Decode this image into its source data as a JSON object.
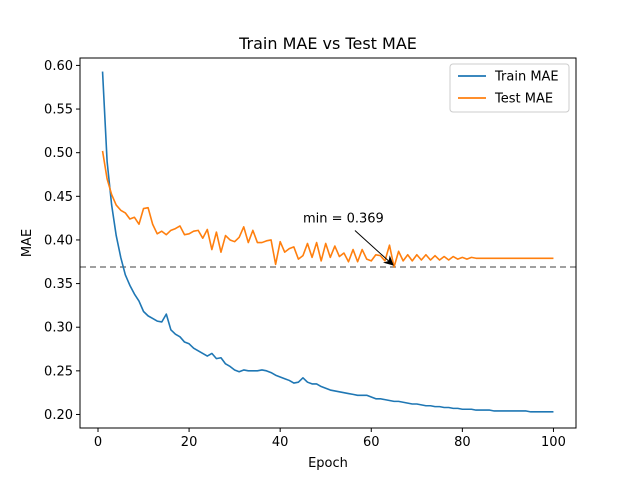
{
  "chart_data": {
    "type": "line",
    "title": "Train MAE vs Test MAE",
    "xlabel": "Epoch",
    "ylabel": "MAE",
    "xlim": [
      -3.95,
      104.95
    ],
    "ylim": [
      0.1845,
      0.6085
    ],
    "xticks": [
      0,
      20,
      40,
      60,
      80,
      100
    ],
    "yticks": [
      0.2,
      0.25,
      0.3,
      0.35,
      0.4,
      0.45,
      0.5,
      0.55,
      0.6
    ],
    "grid": false,
    "legend_position": "top-right",
    "x": [
      1,
      2,
      3,
      4,
      5,
      6,
      7,
      8,
      9,
      10,
      11,
      12,
      13,
      14,
      15,
      16,
      17,
      18,
      19,
      20,
      21,
      22,
      23,
      24,
      25,
      26,
      27,
      28,
      29,
      30,
      31,
      32,
      33,
      34,
      35,
      36,
      37,
      38,
      39,
      40,
      41,
      42,
      43,
      44,
      45,
      46,
      47,
      48,
      49,
      50,
      51,
      52,
      53,
      54,
      55,
      56,
      57,
      58,
      59,
      60,
      61,
      62,
      63,
      64,
      65,
      66,
      67,
      68,
      69,
      70,
      71,
      72,
      73,
      74,
      75,
      76,
      77,
      78,
      79,
      80,
      81,
      82,
      83,
      84,
      85,
      86,
      87,
      88,
      89,
      90,
      91,
      92,
      93,
      94,
      95,
      96,
      97,
      98,
      99,
      100
    ],
    "series": [
      {
        "name": "Train MAE",
        "color": "#1f77b4",
        "values": [
          0.593,
          0.49,
          0.44,
          0.405,
          0.38,
          0.36,
          0.348,
          0.338,
          0.33,
          0.318,
          0.313,
          0.31,
          0.307,
          0.306,
          0.315,
          0.297,
          0.292,
          0.289,
          0.283,
          0.281,
          0.276,
          0.273,
          0.27,
          0.267,
          0.27,
          0.264,
          0.265,
          0.258,
          0.255,
          0.251,
          0.249,
          0.251,
          0.25,
          0.25,
          0.25,
          0.251,
          0.25,
          0.248,
          0.245,
          0.243,
          0.241,
          0.239,
          0.236,
          0.237,
          0.242,
          0.237,
          0.235,
          0.235,
          0.232,
          0.23,
          0.228,
          0.227,
          0.226,
          0.225,
          0.224,
          0.223,
          0.222,
          0.222,
          0.222,
          0.22,
          0.218,
          0.218,
          0.217,
          0.216,
          0.215,
          0.215,
          0.214,
          0.213,
          0.212,
          0.212,
          0.211,
          0.21,
          0.21,
          0.209,
          0.209,
          0.208,
          0.208,
          0.207,
          0.207,
          0.206,
          0.206,
          0.206,
          0.205,
          0.205,
          0.205,
          0.205,
          0.204,
          0.204,
          0.204,
          0.204,
          0.204,
          0.204,
          0.204,
          0.204,
          0.203,
          0.203,
          0.203,
          0.203,
          0.203,
          0.203
        ]
      },
      {
        "name": "Test MAE",
        "color": "#ff7f0e",
        "values": [
          0.502,
          0.47,
          0.452,
          0.44,
          0.434,
          0.431,
          0.424,
          0.426,
          0.418,
          0.436,
          0.437,
          0.418,
          0.407,
          0.41,
          0.406,
          0.411,
          0.413,
          0.416,
          0.406,
          0.407,
          0.41,
          0.411,
          0.402,
          0.412,
          0.389,
          0.409,
          0.386,
          0.405,
          0.4,
          0.398,
          0.403,
          0.415,
          0.397,
          0.411,
          0.397,
          0.397,
          0.399,
          0.4,
          0.372,
          0.398,
          0.386,
          0.39,
          0.392,
          0.378,
          0.382,
          0.396,
          0.38,
          0.397,
          0.376,
          0.396,
          0.38,
          0.393,
          0.381,
          0.385,
          0.375,
          0.389,
          0.375,
          0.389,
          0.378,
          0.376,
          0.383,
          0.382,
          0.376,
          0.394,
          0.369,
          0.387,
          0.376,
          0.383,
          0.376,
          0.383,
          0.377,
          0.383,
          0.377,
          0.382,
          0.377,
          0.381,
          0.377,
          0.381,
          0.378,
          0.38,
          0.378,
          0.38,
          0.379,
          0.379,
          0.379,
          0.379,
          0.379,
          0.379,
          0.379,
          0.379,
          0.379,
          0.379,
          0.379,
          0.379,
          0.379,
          0.379,
          0.379,
          0.379,
          0.379,
          0.379
        ]
      }
    ],
    "hline": {
      "y": 0.369,
      "color": "#808080",
      "style": "dashed"
    },
    "annotation": {
      "text": "min = 0.369",
      "arrow_to": {
        "x": 65,
        "y": 0.369
      },
      "text_at": {
        "x": 45,
        "y": 0.42
      }
    }
  }
}
